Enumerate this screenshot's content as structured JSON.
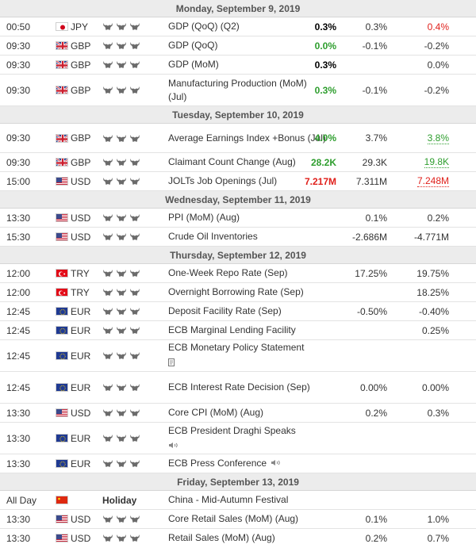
{
  "calendar": {
    "days": [
      {
        "header": "Monday, September 9, 2019",
        "events": [
          {
            "time": "00:50",
            "flag": "jp",
            "currency": "JPY",
            "importance": 3,
            "event": "GDP (QoQ) (Q2)",
            "actual": "0.3%",
            "actual_color": "black",
            "forecast": "0.3%",
            "previous": "0.4%",
            "previous_color": "red",
            "previous_dotted": false,
            "height": 24
          },
          {
            "time": "09:30",
            "flag": "gb",
            "currency": "GBP",
            "importance": 3,
            "event": "GDP (QoQ)",
            "actual": "0.0%",
            "actual_color": "green",
            "forecast": "-0.1%",
            "previous": "-0.2%",
            "previous_color": "",
            "previous_dotted": false,
            "height": 24
          },
          {
            "time": "09:30",
            "flag": "gb",
            "currency": "GBP",
            "importance": 3,
            "event": "GDP (MoM)",
            "actual": "0.3%",
            "actual_color": "black",
            "forecast": "",
            "previous": "0.0%",
            "previous_color": "",
            "previous_dotted": false,
            "height": 24
          },
          {
            "time": "09:30",
            "flag": "gb",
            "currency": "GBP",
            "importance": 3,
            "event": "Manufacturing Production (MoM) (Jul)",
            "actual": "0.3%",
            "actual_color": "green",
            "forecast": "-0.1%",
            "previous": "-0.2%",
            "previous_color": "",
            "previous_dotted": false,
            "height": 40
          }
        ]
      },
      {
        "header": "Tuesday, September 10, 2019",
        "events": [
          {
            "time": "09:30",
            "flag": "gb",
            "currency": "GBP",
            "importance": 3,
            "event": "Average Earnings Index +Bonus (Jul)",
            "actual": "4.0%",
            "actual_color": "green",
            "forecast": "3.7%",
            "previous": "3.8%",
            "previous_color": "green",
            "previous_dotted": true,
            "height": 37
          },
          {
            "time": "09:30",
            "flag": "gb",
            "currency": "GBP",
            "importance": 3,
            "event": "Claimant Count Change (Aug)",
            "actual": "28.2K",
            "actual_color": "green",
            "forecast": "29.3K",
            "previous": "19.8K",
            "previous_color": "green",
            "previous_dotted": true,
            "height": 24
          },
          {
            "time": "15:00",
            "flag": "us",
            "currency": "USD",
            "importance": 3,
            "event": "JOLTs Job Openings (Jul)",
            "actual": "7.217M",
            "actual_color": "red",
            "forecast": "7.311M",
            "previous": "7.248M",
            "previous_color": "red",
            "previous_dotted": true,
            "height": 24
          }
        ]
      },
      {
        "header": "Wednesday, September 11, 2019",
        "events": [
          {
            "time": "13:30",
            "flag": "us",
            "currency": "USD",
            "importance": 3,
            "event": "PPI (MoM) (Aug)",
            "actual": "",
            "actual_color": "",
            "forecast": "0.1%",
            "previous": "0.2%",
            "previous_color": "",
            "previous_dotted": false,
            "height": 24
          },
          {
            "time": "15:30",
            "flag": "us",
            "currency": "USD",
            "importance": 3,
            "event": "Crude Oil Inventories",
            "actual": "",
            "actual_color": "",
            "forecast": "-2.686M",
            "previous": "-4.771M",
            "previous_color": "",
            "previous_dotted": false,
            "height": 24
          }
        ]
      },
      {
        "header": "Thursday, September 12, 2019",
        "events": [
          {
            "time": "12:00",
            "flag": "tr",
            "currency": "TRY",
            "importance": 3,
            "event": "One-Week Repo Rate (Sep)",
            "actual": "",
            "actual_color": "",
            "forecast": "17.25%",
            "previous": "19.75%",
            "previous_color": "",
            "previous_dotted": false,
            "height": 24
          },
          {
            "time": "12:00",
            "flag": "tr",
            "currency": "TRY",
            "importance": 3,
            "event": "Overnight Borrowing Rate (Sep)",
            "actual": "",
            "actual_color": "",
            "forecast": "",
            "previous": "18.25%",
            "previous_color": "",
            "previous_dotted": false,
            "height": 24
          },
          {
            "time": "12:45",
            "flag": "eu",
            "currency": "EUR",
            "importance": 3,
            "event": "Deposit Facility Rate (Sep)",
            "actual": "",
            "actual_color": "",
            "forecast": "-0.50%",
            "previous": "-0.40%",
            "previous_color": "",
            "previous_dotted": false,
            "height": 24
          },
          {
            "time": "12:45",
            "flag": "eu",
            "currency": "EUR",
            "importance": 3,
            "event": "ECB Marginal Lending Facility",
            "actual": "",
            "actual_color": "",
            "forecast": "",
            "previous": "0.25%",
            "previous_color": "",
            "previous_dotted": false,
            "height": 24
          },
          {
            "time": "12:45",
            "flag": "eu",
            "currency": "EUR",
            "importance": 3,
            "event": "ECB Monetary Policy Statement",
            "extra_icon": "document-icon",
            "actual": "",
            "actual_color": "",
            "forecast": "",
            "previous": "",
            "previous_color": "",
            "previous_dotted": false,
            "height": 40
          },
          {
            "time": "12:45",
            "flag": "eu",
            "currency": "EUR",
            "importance": 3,
            "event": "ECB Interest Rate Decision (Sep)",
            "actual": "",
            "actual_color": "",
            "forecast": "0.00%",
            "previous": "0.00%",
            "previous_color": "",
            "previous_dotted": false,
            "height": 40
          },
          {
            "time": "13:30",
            "flag": "us",
            "currency": "USD",
            "importance": 3,
            "event": "Core CPI (MoM) (Aug)",
            "actual": "",
            "actual_color": "",
            "forecast": "0.2%",
            "previous": "0.3%",
            "previous_color": "",
            "previous_dotted": false,
            "height": 24
          },
          {
            "time": "13:30",
            "flag": "eu",
            "currency": "EUR",
            "importance": 3,
            "event": "ECB President Draghi Speaks",
            "extra_icon": "speaker-icon",
            "actual": "",
            "actual_color": "",
            "forecast": "",
            "previous": "",
            "previous_color": "",
            "previous_dotted": false,
            "height": 40
          },
          {
            "time": "13:30",
            "flag": "eu",
            "currency": "EUR",
            "importance": 3,
            "event": "ECB Press Conference",
            "extra_icon": "speaker-icon",
            "actual": "",
            "actual_color": "",
            "forecast": "",
            "previous": "",
            "previous_color": "",
            "previous_dotted": false,
            "height": 24
          }
        ]
      },
      {
        "header": "Friday, September 13, 2019",
        "events": [
          {
            "time": "All Day",
            "flag": "cn",
            "currency": "",
            "importance": 0,
            "holiday_label": "Holiday",
            "event": "China - Mid-Autumn Festival",
            "actual": "",
            "actual_color": "",
            "forecast": "",
            "previous": "",
            "previous_color": "",
            "previous_dotted": false,
            "height": 24
          },
          {
            "time": "13:30",
            "flag": "us",
            "currency": "USD",
            "importance": 3,
            "event": "Core Retail Sales (MoM) (Aug)",
            "actual": "",
            "actual_color": "",
            "forecast": "0.1%",
            "previous": "1.0%",
            "previous_color": "",
            "previous_dotted": false,
            "height": 24
          },
          {
            "time": "13:30",
            "flag": "us",
            "currency": "USD",
            "importance": 3,
            "event": "Retail Sales (MoM) (Aug)",
            "actual": "",
            "actual_color": "",
            "forecast": "0.2%",
            "previous": "0.7%",
            "previous_color": "",
            "previous_dotted": false,
            "height": 24
          }
        ]
      }
    ]
  }
}
